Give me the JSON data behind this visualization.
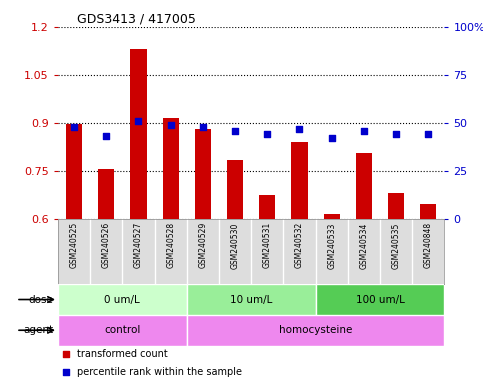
{
  "title": "GDS3413 / 417005",
  "samples": [
    "GSM240525",
    "GSM240526",
    "GSM240527",
    "GSM240528",
    "GSM240529",
    "GSM240530",
    "GSM240531",
    "GSM240532",
    "GSM240533",
    "GSM240534",
    "GSM240535",
    "GSM240848"
  ],
  "transformed_count": [
    0.895,
    0.755,
    1.13,
    0.915,
    0.88,
    0.785,
    0.675,
    0.84,
    0.615,
    0.805,
    0.68,
    0.645
  ],
  "percentile_rank": [
    48,
    43,
    51,
    49,
    48,
    46,
    44,
    47,
    42,
    46,
    44,
    44
  ],
  "ylim_left": [
    0.6,
    1.2
  ],
  "ylim_right": [
    0,
    100
  ],
  "yticks_left": [
    0.6,
    0.75,
    0.9,
    1.05,
    1.2
  ],
  "yticks_right": [
    0,
    25,
    50,
    75,
    100
  ],
  "ytick_labels_right": [
    "0",
    "25",
    "50",
    "75",
    "100%"
  ],
  "bar_color": "#cc0000",
  "scatter_color": "#0000cc",
  "dose_groups": [
    {
      "label": "0 um/L",
      "start": 0,
      "end": 4,
      "color": "#ccffcc"
    },
    {
      "label": "10 um/L",
      "start": 4,
      "end": 8,
      "color": "#99ee99"
    },
    {
      "label": "100 um/L",
      "start": 8,
      "end": 12,
      "color": "#55cc55"
    }
  ],
  "agent_control": {
    "label": "control",
    "start": 0,
    "end": 4,
    "color": "#ee88ee"
  },
  "agent_homocysteine": {
    "label": "homocysteine",
    "start": 4,
    "end": 12,
    "color": "#ee88ee"
  },
  "dose_label": "dose",
  "agent_label": "agent",
  "legend_items": [
    {
      "label": "transformed count",
      "color": "#cc0000"
    },
    {
      "label": "percentile rank within the sample",
      "color": "#0000cc"
    }
  ],
  "tick_color_left": "#cc0000",
  "tick_color_right": "#0000cc",
  "bar_width": 0.5,
  "background_color": "#ffffff",
  "xlabelarea_color": "#dddddd"
}
